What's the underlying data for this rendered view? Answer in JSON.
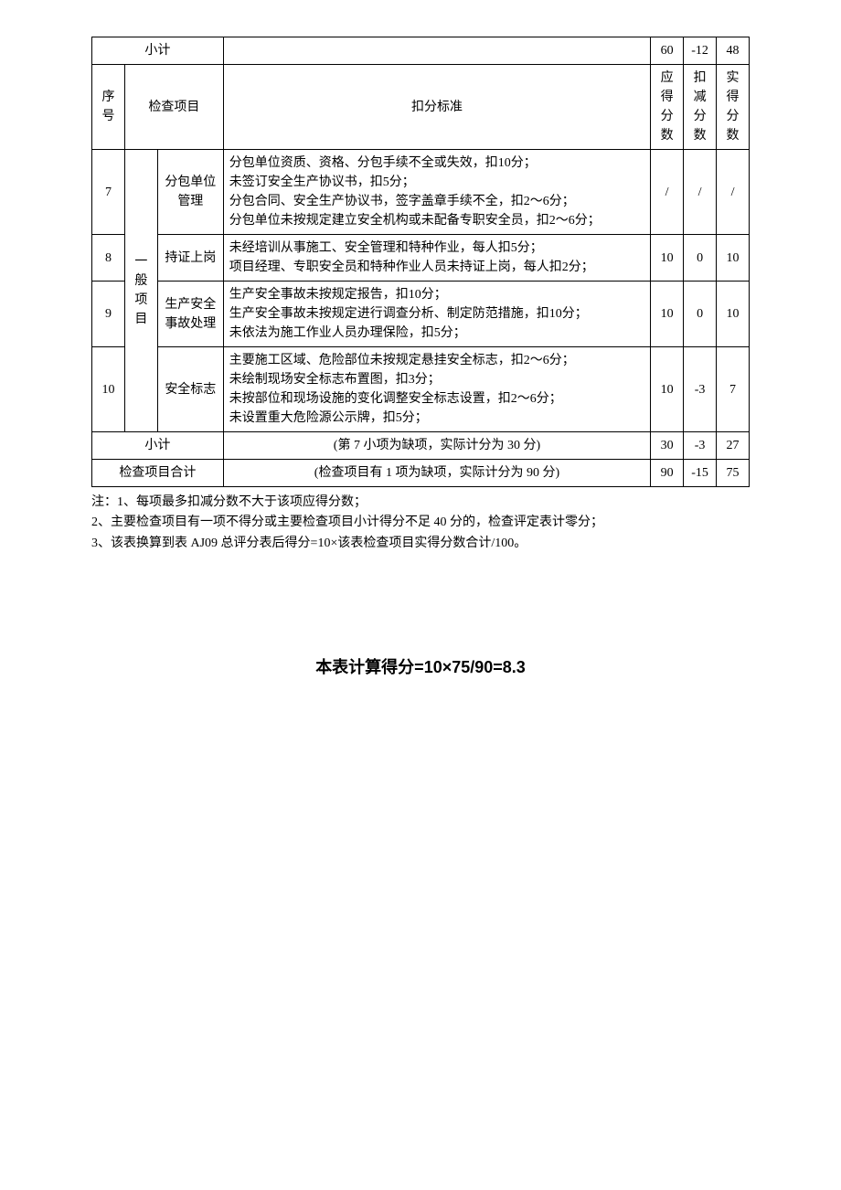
{
  "subtotal_top": {
    "label": "小计",
    "score": "60",
    "deduct": "-12",
    "actual": "48"
  },
  "header": {
    "seq": "序号",
    "item": "检查项目",
    "standard": "扣分标准",
    "score": "应得分数",
    "deduct": "扣减分数",
    "actual": "实得分数"
  },
  "group_label": "一般项目",
  "rows": [
    {
      "seq": "7",
      "name": "分包单位管理",
      "standard": "分包单位资质、资格、分包手续不全或失效，扣10分；\n未签订安全生产协议书，扣5分；\n分包合同、安全生产协议书，签字盖章手续不全，扣2～6分；\n分包单位未按规定建立安全机构或未配备专职安全员，扣2～6分；",
      "score": "/",
      "deduct": "/",
      "actual": "/"
    },
    {
      "seq": "8",
      "name": "持证上岗",
      "standard": "未经培训从事施工、安全管理和特种作业，每人扣5分；\n项目经理、专职安全员和特种作业人员未持证上岗，每人扣2分；",
      "score": "10",
      "deduct": "0",
      "actual": "10"
    },
    {
      "seq": "9",
      "name": "生产安全事故处理",
      "standard": "生产安全事故未按规定报告，扣10分；\n生产安全事故未按规定进行调查分析、制定防范措施，扣10分；\n未依法为施工作业人员办理保险，扣5分；",
      "score": "10",
      "deduct": "0",
      "actual": "10"
    },
    {
      "seq": "10",
      "name": "安全标志",
      "standard": "主要施工区域、危险部位未按规定悬挂安全标志，扣2～6分；\n未绘制现场安全标志布置图，扣3分；\n未按部位和现场设施的变化调整安全标志设置，扣2～6分；\n未设置重大危险源公示牌，扣5分；",
      "score": "10",
      "deduct": "-3",
      "actual": "7"
    }
  ],
  "subtotal_bottom": {
    "label": "小计",
    "note": "(第 7 小项为缺项，实际计分为 30 分)",
    "score": "30",
    "deduct": "-3",
    "actual": "27"
  },
  "total": {
    "label": "检查项目合计",
    "note": "(检查项目有 1 项为缺项，实际计分为 90 分)",
    "score": "90",
    "deduct": "-15",
    "actual": "75"
  },
  "notes": [
    "注：1、每项最多扣减分数不大于该项应得分数；",
    "2、主要检查项目有一项不得分或主要检查项目小计得分不足 40 分的，检查评定表计零分；",
    "3、该表换算到表 AJ09 总评分表后得分=10×该表检查项目实得分数合计/100。"
  ],
  "formula": "本表计算得分=10×75/90=8.3"
}
